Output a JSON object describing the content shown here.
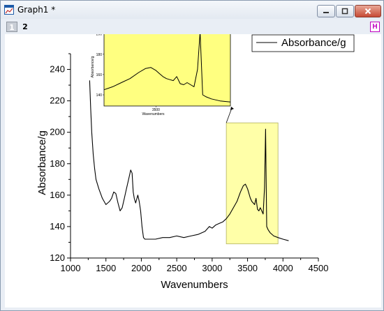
{
  "window": {
    "title": "Graph1 *",
    "icons": {
      "app": "graph-icon",
      "minimize": "minimize-icon",
      "maximize": "maximize-icon",
      "close": "close-icon"
    }
  },
  "layers": {
    "tabs": [
      {
        "label": "1"
      },
      {
        "label": "2"
      }
    ],
    "h_button": "H"
  },
  "colors": {
    "highlight": "#ffffa8",
    "inset_bg": "#ffff80",
    "line": "#000000"
  },
  "chart_data": [
    {
      "type": "line",
      "xlabel": "Wavenumbers",
      "ylabel": "Absorbance/g",
      "xlim": [
        1000,
        4500
      ],
      "ylim": [
        120,
        250
      ],
      "xticks": [
        1000,
        1500,
        2000,
        2500,
        3000,
        3500,
        4000,
        4500
      ],
      "yticks": [
        120,
        140,
        160,
        180,
        200,
        220,
        240
      ],
      "legend": {
        "label": "Absorbance/g",
        "placement": "top-right"
      },
      "series": [
        {
          "name": "Absorbance/g",
          "x": [
            1270,
            1285,
            1300,
            1320,
            1340,
            1360,
            1400,
            1450,
            1500,
            1550,
            1580,
            1610,
            1640,
            1670,
            1700,
            1730,
            1760,
            1790,
            1820,
            1850,
            1870,
            1885,
            1900,
            1920,
            1950,
            1970,
            1990,
            2010,
            2030,
            2050,
            2070,
            2100,
            2200,
            2300,
            2400,
            2500,
            2600,
            2700,
            2800,
            2900,
            2960,
            3000,
            3050,
            3100,
            3150,
            3200,
            3250,
            3300,
            3350,
            3400,
            3440,
            3470,
            3500,
            3520,
            3540,
            3560,
            3580,
            3600,
            3620,
            3640,
            3660,
            3680,
            3700,
            3720,
            3740,
            3755,
            3770,
            3790,
            3820,
            3870,
            3930,
            4000,
            4080
          ],
          "y": [
            233,
            215,
            200,
            186,
            177,
            170,
            164,
            158,
            154,
            156,
            158,
            162,
            161,
            155,
            150,
            152,
            158,
            164,
            170,
            176,
            174,
            162,
            158,
            155,
            160,
            156,
            150,
            140,
            133,
            132,
            132,
            132,
            132,
            133,
            133,
            134,
            133,
            134,
            135,
            137,
            140,
            139,
            141,
            142,
            143,
            145,
            148,
            152,
            156,
            162,
            166,
            167,
            164,
            161,
            158,
            156,
            155,
            154,
            158,
            151,
            150,
            152,
            150,
            148,
            165,
            202,
            140,
            138,
            136,
            134,
            133,
            132,
            131
          ]
        }
      ],
      "highlight_region": {
        "x": [
          3200,
          3930
        ],
        "y": [
          129,
          206
        ]
      }
    },
    {
      "type": "line",
      "title": "",
      "xlabel": "Wavenumbers",
      "ylabel": "Absorbance/g",
      "xlim": [
        3200,
        3930
      ],
      "ylim": [
        129,
        206
      ],
      "xticks": [
        3500
      ],
      "yticks": [
        140,
        160,
        180,
        200
      ],
      "series": [
        {
          "x": [
            3200,
            3250,
            3300,
            3350,
            3400,
            3440,
            3470,
            3500,
            3520,
            3540,
            3560,
            3580,
            3600,
            3620,
            3640,
            3660,
            3680,
            3700,
            3720,
            3740,
            3755,
            3770,
            3790,
            3820,
            3870,
            3930
          ],
          "y": [
            145,
            148,
            152,
            156,
            162,
            166,
            167,
            164,
            161,
            158,
            156,
            155,
            154,
            158,
            151,
            150,
            152,
            150,
            148,
            165,
            202,
            140,
            138,
            136,
            134,
            133
          ]
        }
      ]
    }
  ]
}
